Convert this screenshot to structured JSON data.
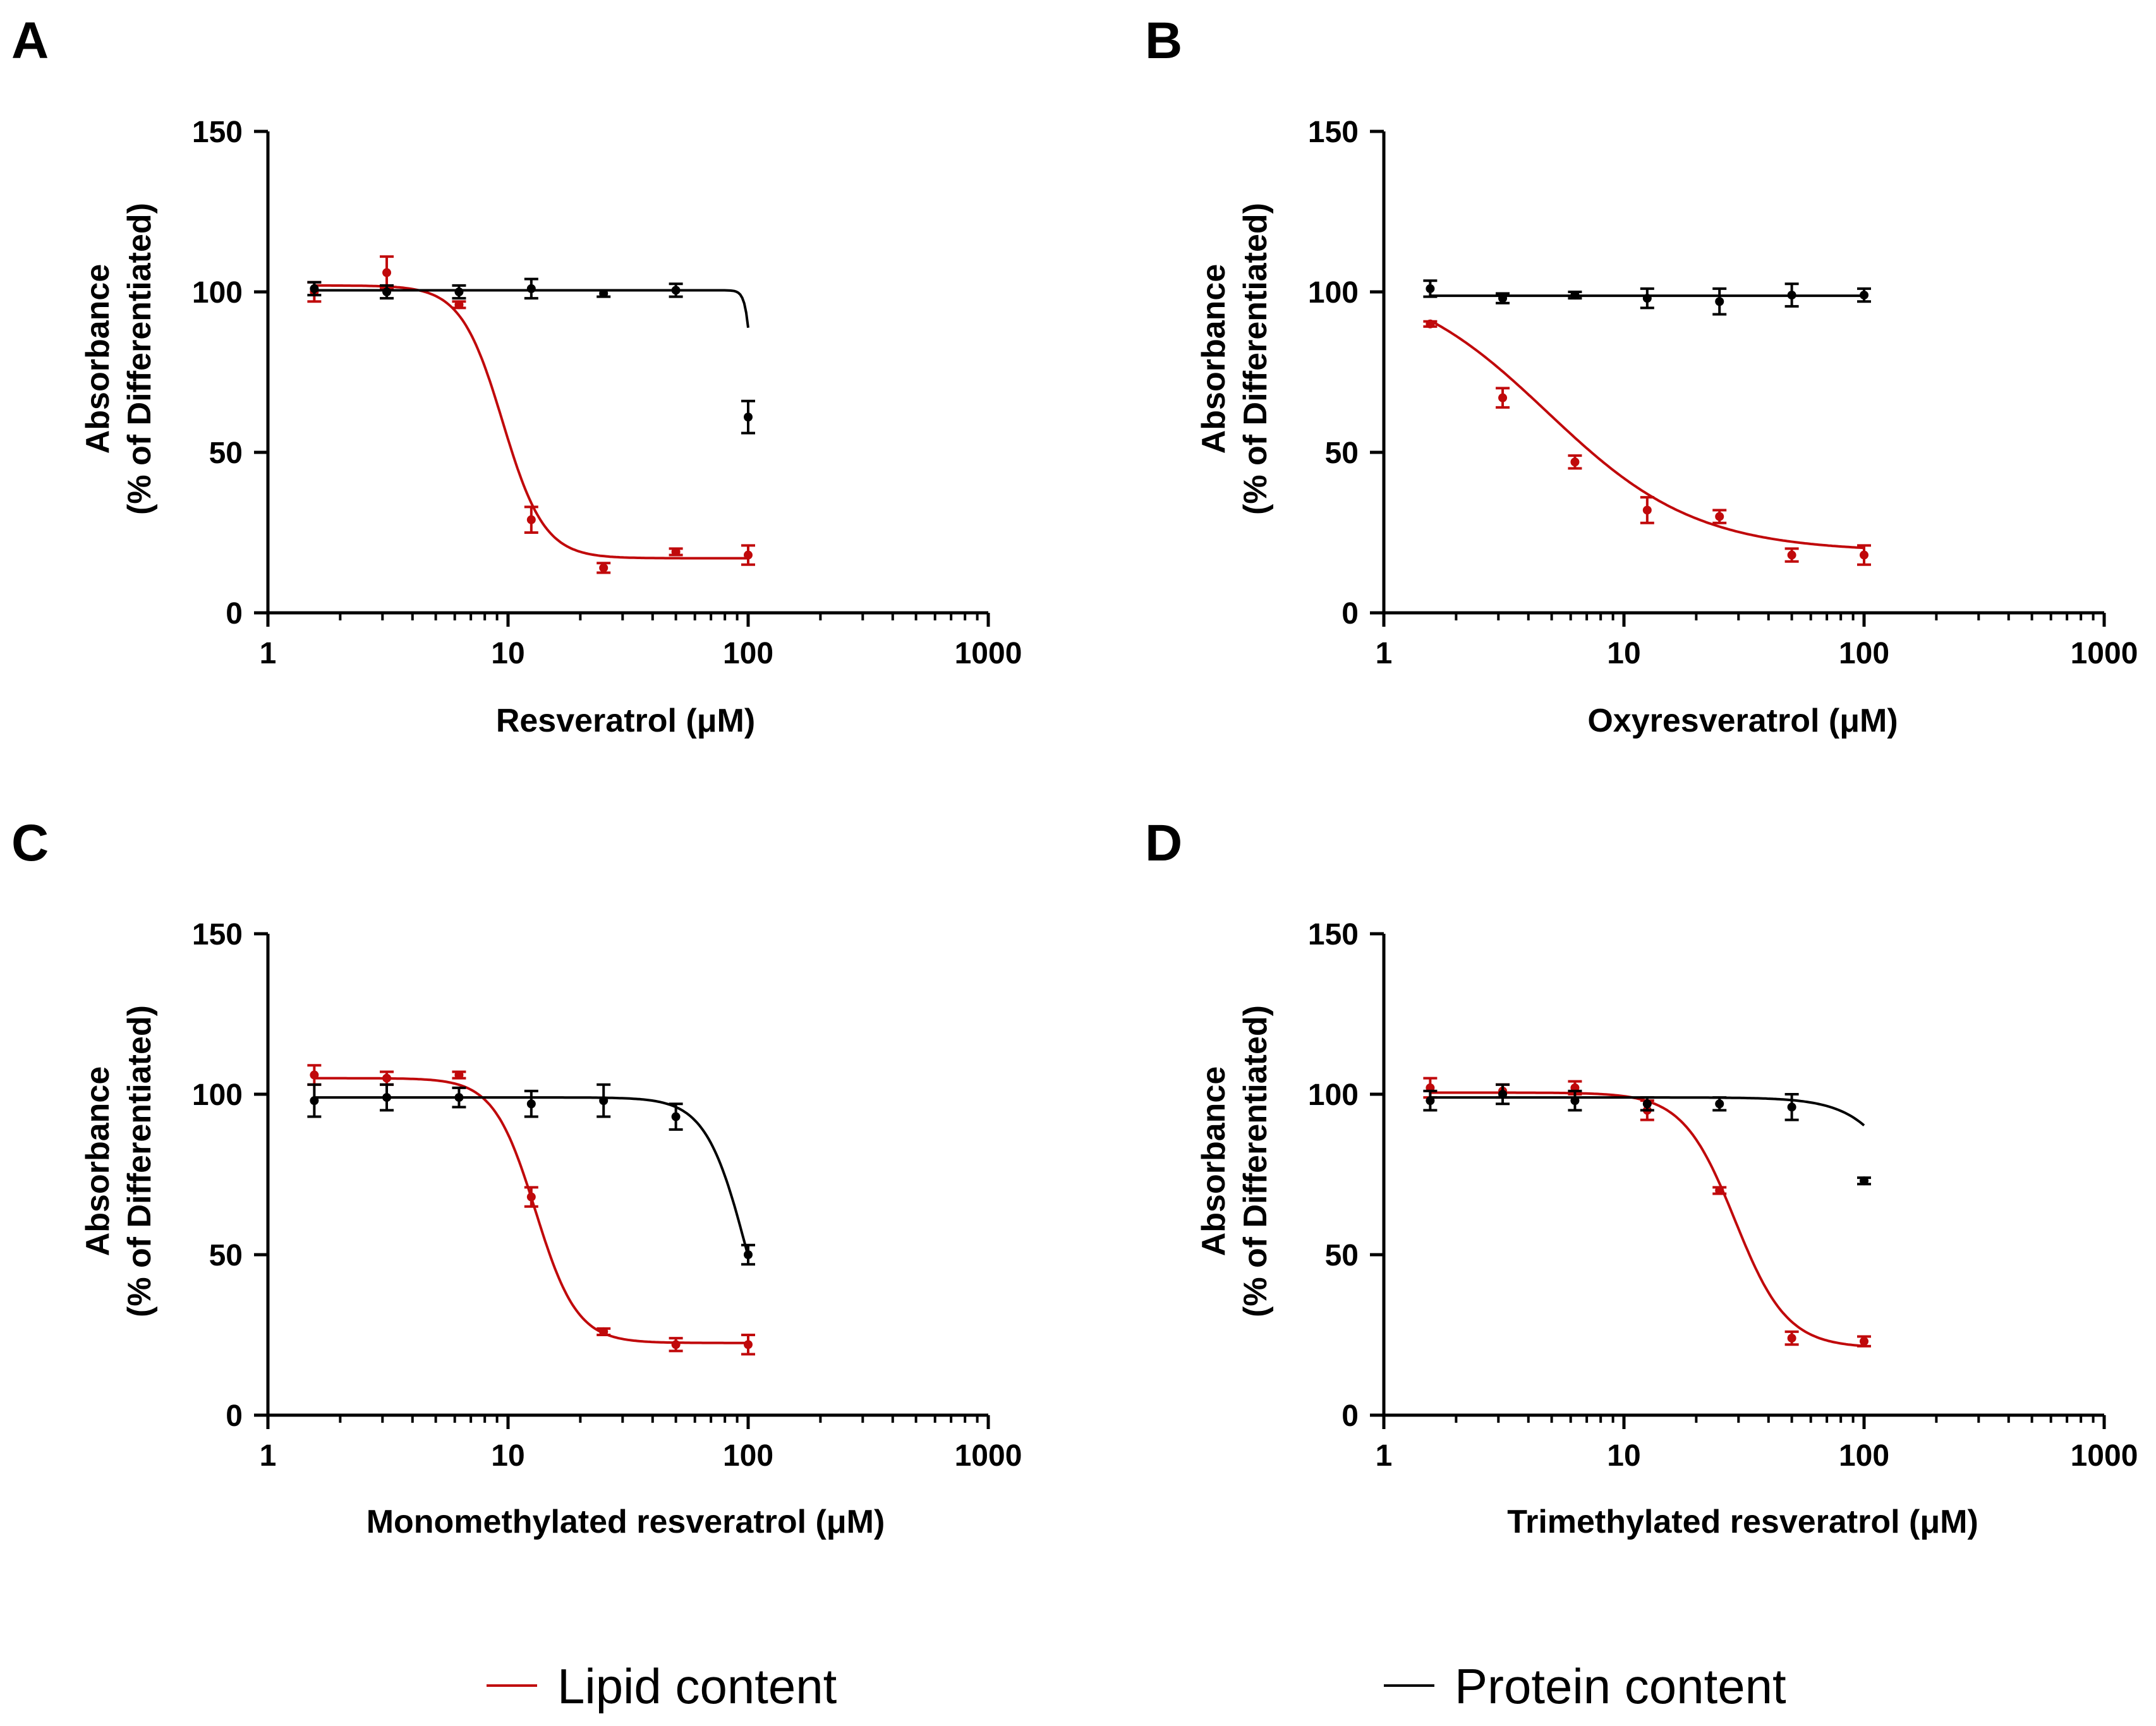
{
  "figure": {
    "legend": {
      "lipid_label": "Lipid content",
      "protein_label": "Protein content"
    }
  },
  "colors": {
    "lipid": "#c0090b",
    "protein": "#000000"
  },
  "chart_data": [
    {
      "panel": "A",
      "type": "line",
      "xscale": "log",
      "title": "",
      "xlabel": "Resveratrol (μM)",
      "ylabel": [
        "Absorbance",
        "(% of Differentiated)"
      ],
      "xlim": [
        1,
        1000
      ],
      "ylim": [
        0,
        150
      ],
      "xticks": [
        1,
        10,
        100,
        1000
      ],
      "xtick_labels": [
        "1",
        "10",
        "100",
        "1000"
      ],
      "yticks": [
        0,
        50,
        100,
        150
      ],
      "ytick_labels": [
        "0",
        "50",
        "100",
        "150"
      ],
      "series": [
        {
          "name": "Lipid content",
          "color": "#c0090b",
          "x": [
            1.56,
            3.125,
            6.25,
            12.5,
            25,
            50,
            100
          ],
          "y": [
            100,
            106,
            96,
            29,
            14,
            19,
            18
          ],
          "err": [
            3,
            5,
            1,
            4,
            1.5,
            1,
            3
          ],
          "fit": {
            "bottom": 17,
            "top": 102,
            "ec50": 9.5,
            "hill": 5
          }
        },
        {
          "name": "Protein content",
          "color": "#000000",
          "x": [
            1.56,
            3.125,
            6.25,
            12.5,
            25,
            50,
            100
          ],
          "y": [
            101,
            100,
            100,
            101,
            99.5,
            100.5,
            61
          ],
          "err": [
            2,
            2,
            2,
            3,
            1,
            2,
            5
          ],
          "fit": {
            "bottom": 0,
            "top": 100.5,
            "ec50": 107,
            "hill": 30
          }
        }
      ]
    },
    {
      "panel": "B",
      "type": "line",
      "xscale": "log",
      "title": "",
      "xlabel": "Oxyresveratrol (μM)",
      "ylabel": [
        "Absorbance",
        "(% of Differentiated)"
      ],
      "xlim": [
        1,
        1000
      ],
      "ylim": [
        0,
        150
      ],
      "xticks": [
        1,
        10,
        100,
        1000
      ],
      "xtick_labels": [
        "1",
        "10",
        "100",
        "1000"
      ],
      "yticks": [
        0,
        50,
        100,
        150
      ],
      "ytick_labels": [
        "0",
        "50",
        "100",
        "150"
      ],
      "series": [
        {
          "name": "Lipid content",
          "color": "#c0090b",
          "x": [
            1.56,
            3.125,
            6.25,
            12.5,
            25,
            50,
            100
          ],
          "y": [
            90,
            67,
            47,
            32,
            30,
            18,
            18
          ],
          "err": [
            0.8,
            3,
            2,
            4,
            2,
            2,
            3
          ],
          "fit": {
            "bottom": 19,
            "top": 106,
            "ec50": 4.8,
            "hill": 1.4
          }
        },
        {
          "name": "Protein content",
          "color": "#000000",
          "x": [
            1.56,
            3.125,
            6.25,
            12.5,
            25,
            50,
            100
          ],
          "y": [
            101,
            98,
            99,
            98,
            97,
            99,
            99
          ],
          "err": [
            2.5,
            1.5,
            1,
            3,
            4,
            3.5,
            2
          ],
          "fit": {
            "bottom": 0,
            "top": 98.8,
            "ec50": 100000,
            "hill": 30
          }
        }
      ]
    },
    {
      "panel": "C",
      "type": "line",
      "xscale": "log",
      "title": "",
      "xlabel": "Monomethylated resveratrol (μM)",
      "ylabel": [
        "Absorbance",
        "(% of Differentiated)"
      ],
      "xlim": [
        1,
        1000
      ],
      "ylim": [
        0,
        150
      ],
      "xticks": [
        1,
        10,
        100,
        1000
      ],
      "xtick_labels": [
        "1",
        "10",
        "100",
        "1000"
      ],
      "yticks": [
        0,
        50,
        100,
        150
      ],
      "ytick_labels": [
        "0",
        "50",
        "100",
        "150"
      ],
      "series": [
        {
          "name": "Lipid content",
          "color": "#c0090b",
          "x": [
            1.56,
            3.125,
            6.25,
            12.5,
            25,
            50,
            100
          ],
          "y": [
            106,
            105,
            106,
            68,
            26,
            22,
            22
          ],
          "err": [
            3,
            2,
            1,
            3,
            1,
            2,
            3
          ],
          "fit": {
            "bottom": 22.5,
            "top": 105,
            "ec50": 13,
            "hill": 5
          }
        },
        {
          "name": "Protein content",
          "color": "#000000",
          "x": [
            1.56,
            3.125,
            6.25,
            12.5,
            25,
            50,
            100
          ],
          "y": [
            98,
            99,
            99,
            97,
            98,
            93,
            50
          ],
          "err": [
            5,
            4,
            3,
            4,
            5,
            4,
            3
          ],
          "fit": {
            "bottom": 0,
            "top": 99,
            "ec50": 100,
            "hill": 5
          }
        }
      ]
    },
    {
      "panel": "D",
      "type": "line",
      "xscale": "log",
      "title": "",
      "xlabel": "Trimethylated resveratrol (μM)",
      "ylabel": [
        "Absorbance",
        "(% of Differentiated)"
      ],
      "xlim": [
        1,
        1000
      ],
      "ylim": [
        0,
        150
      ],
      "xticks": [
        1,
        10,
        100,
        1000
      ],
      "xtick_labels": [
        "1",
        "10",
        "100",
        "1000"
      ],
      "yticks": [
        0,
        50,
        100,
        150
      ],
      "ytick_labels": [
        "0",
        "50",
        "100",
        "150"
      ],
      "series": [
        {
          "name": "Lipid content",
          "color": "#c0090b",
          "x": [
            1.56,
            3.125,
            6.25,
            12.5,
            25,
            50,
            100
          ],
          "y": [
            102,
            101,
            102,
            95,
            70,
            24,
            23
          ],
          "err": [
            3,
            2,
            2,
            3,
            1,
            2,
            1.5
          ],
          "fit": {
            "bottom": 21,
            "top": 100.5,
            "ec50": 29,
            "hill": 4
          }
        },
        {
          "name": "Protein content",
          "color": "#000000",
          "x": [
            1.56,
            3.125,
            6.25,
            12.5,
            25,
            50,
            100
          ],
          "y": [
            98,
            100,
            98,
            97,
            97,
            96,
            73
          ],
          "err": [
            3,
            3,
            3,
            2,
            2,
            4,
            1
          ],
          "fit": {
            "bottom": 0,
            "top": 99,
            "ec50": 195,
            "hill": 3.5
          }
        }
      ]
    }
  ]
}
